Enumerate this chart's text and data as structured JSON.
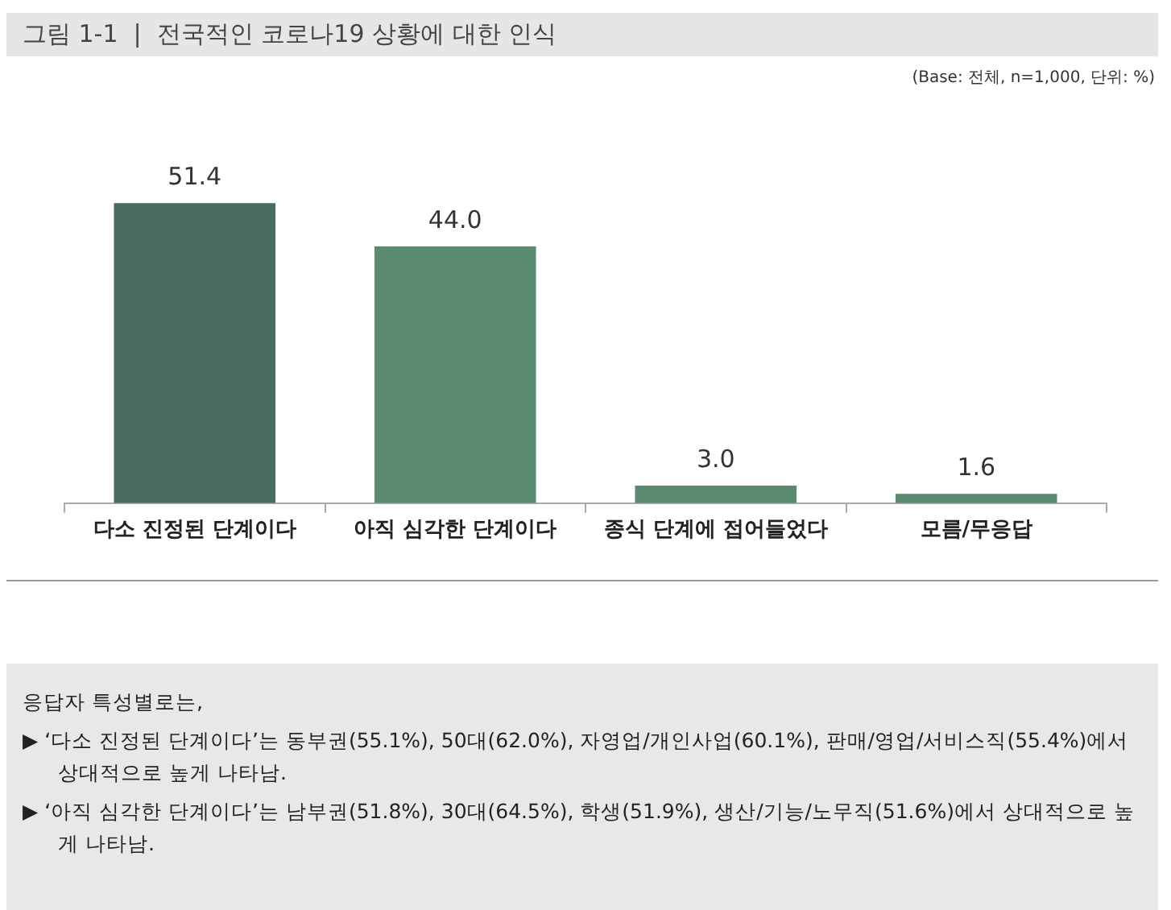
{
  "chart_data": {
    "type": "bar",
    "title": "그림 1-1  |  전국적인 코로나19 상황에 대한 인식",
    "categories": [
      "다소 진정된 단계이다",
      "아직 심각한 단계이다",
      "종식 단계에 접어들었다",
      "모름/무응답"
    ],
    "values": [
      51.4,
      44.0,
      3.0,
      1.6
    ],
    "colors": [
      "#4a6b5f",
      "#5a8a70",
      "#5a8a70",
      "#5a8a70"
    ],
    "value_labels": [
      "51.4",
      "44.0",
      "3.0",
      "1.6"
    ],
    "grid": false,
    "legend": false,
    "annotations": [
      "(Base: 전체, n=1,000, 단위: %)",
      "응답자 특성별로는,",
      "▶ ‘다소 진정된 단계이다’는 동부권(55.1%), 50대(62.0%), 자영업/개인사업(60.1%), 판매/영업/서비스직(55.4%)에서 상대적으로 높게 나타남.",
      "▶ ‘아직 심각한 단계이다’는 남부권(51.8%), 30대(64.5%), 학생(51.9%), 생산/기능/노무직(51.6%)에서 상대적으로 높게 나타남."
    ]
  }
}
